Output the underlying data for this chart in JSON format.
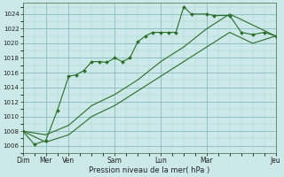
{
  "xlabel": "Pression niveau de la mer( hPa )",
  "bg_color": "#cce8e8",
  "grid_major_color": "#88bbbb",
  "grid_minor_color": "#aad4d4",
  "line_color": "#2a6e2a",
  "yticks": [
    1006,
    1008,
    1010,
    1012,
    1014,
    1016,
    1018,
    1020,
    1022,
    1024
  ],
  "ylim": [
    1005.0,
    1025.5
  ],
  "xlim": [
    0,
    11
  ],
  "day_positions": [
    0,
    1,
    2,
    4,
    6,
    8,
    11
  ],
  "day_labels": [
    "Dim",
    "Mer",
    "Ven",
    "Sam",
    "Lun",
    "Mar",
    "Jeu"
  ],
  "line1_x": [
    0,
    0.5,
    1,
    1.5,
    2,
    2.33,
    2.66,
    3,
    3.33,
    3.66,
    4,
    4.33,
    4.66,
    5,
    5.33,
    5.66,
    6,
    6.33,
    6.66,
    7,
    7.33,
    8,
    8.33,
    9,
    9.5,
    10,
    10.5,
    11
  ],
  "line1_y": [
    1008,
    1006.2,
    1006.7,
    1010.8,
    1015.5,
    1015.7,
    1016.3,
    1017.5,
    1017.5,
    1017.4,
    1018.0,
    1017.5,
    1018.0,
    1020.2,
    1021.0,
    1021.5,
    1021.5,
    1021.5,
    1021.5,
    1025.0,
    1024.0,
    1024.0,
    1023.8,
    1023.8,
    1021.5,
    1021.2,
    1021.5,
    1021.0
  ],
  "line2_x": [
    0,
    1,
    2,
    3,
    4,
    5,
    6,
    7,
    8,
    9,
    10,
    11
  ],
  "line2_y": [
    1008,
    1007.5,
    1008.8,
    1011.5,
    1013.0,
    1015.0,
    1017.5,
    1019.5,
    1022.0,
    1024.0,
    1022.5,
    1021.0
  ],
  "line3_x": [
    0,
    1,
    2,
    3,
    4,
    5,
    6,
    7,
    8,
    9,
    10,
    11
  ],
  "line3_y": [
    1008,
    1006.5,
    1007.5,
    1010.0,
    1011.5,
    1013.5,
    1015.5,
    1017.5,
    1019.5,
    1021.5,
    1020.0,
    1021.0
  ]
}
